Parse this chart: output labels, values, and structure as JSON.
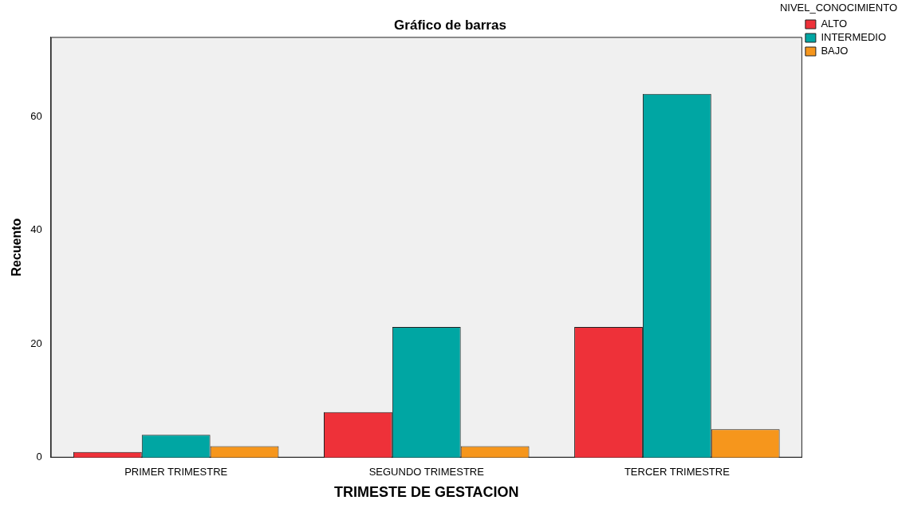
{
  "chart_data": {
    "type": "bar",
    "title": "Gráfico de barras",
    "xlabel": "TRIMESTE DE GESTACION",
    "ylabel": "Recuento",
    "legend_title": "NIVEL_CONOCIMIENTO",
    "categories": [
      "PRIMER TRIMESTRE",
      "SEGUNDO TRIMESTRE",
      "TERCER TRIMESTRE"
    ],
    "series": [
      {
        "name": "ALTO",
        "color": "#ee3139",
        "values": [
          1,
          8,
          23
        ]
      },
      {
        "name": "INTERMEDIO",
        "color": "#00a6a3",
        "values": [
          4,
          23,
          64
        ]
      },
      {
        "name": "BAJO",
        "color": "#f6961c",
        "values": [
          2,
          2,
          5
        ]
      }
    ],
    "ylim": [
      0,
      74
    ],
    "yticks": [
      0,
      20,
      40,
      60
    ],
    "grid": false,
    "legend": "top right"
  }
}
